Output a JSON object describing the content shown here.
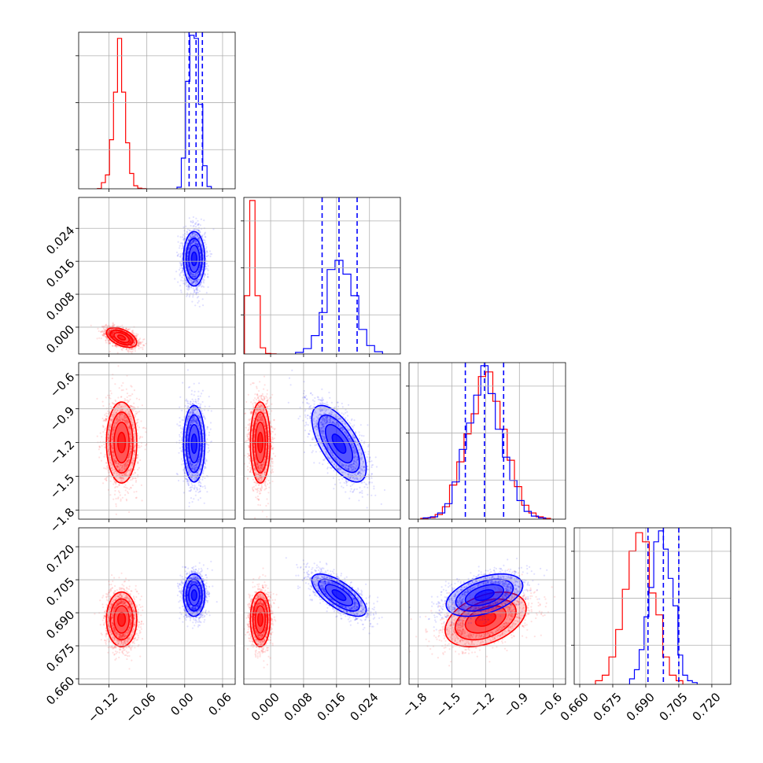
{
  "chart_data": {
    "type": "scatter",
    "kind": "corner-plot",
    "params": [
      {
        "ticks": [
          -0.12,
          -0.06,
          0.0,
          0.06
        ],
        "tick_labels": [
          "−0.12",
          "−0.06",
          "0.00",
          "0.06"
        ],
        "range": [
          -0.168,
          0.08
        ]
      },
      {
        "ticks": [
          0.0,
          0.008,
          0.016,
          0.024
        ],
        "tick_labels": [
          "0.000",
          "0.008",
          "0.016",
          "0.024"
        ],
        "range": [
          -0.0065,
          0.0315
        ]
      },
      {
        "ticks": [
          -1.8,
          -1.5,
          -1.2,
          -0.9,
          -0.6
        ],
        "tick_labels": [
          "−1.8",
          "−1.5",
          "−1.2",
          "−0.9",
          "−0.6"
        ],
        "range": [
          -1.88,
          -0.49
        ]
      },
      {
        "ticks": [
          0.66,
          0.675,
          0.69,
          0.705,
          0.72
        ],
        "tick_labels": [
          "0.660",
          "0.675",
          "0.690",
          "0.705",
          "0.720"
        ],
        "range": [
          0.6575,
          0.7286
        ]
      }
    ],
    "series": [
      {
        "color": "#ff0000",
        "mean": [
          -0.1,
          -0.0025,
          -1.2,
          0.687
        ],
        "sd": [
          0.012,
          0.0012,
          0.18,
          0.0062
        ],
        "corr": [
          [
            0,
            1,
            -0.5
          ],
          [
            2,
            3,
            0.4
          ]
        ],
        "hist": [
          [
            0.0015,
            0.04,
            0.09,
            0.32,
            0.63,
            0.98,
            0.63,
            0.3,
            0.1,
            0.02,
            0.004,
            0.0005
          ],
          [
            0.38,
            1.0,
            0.38,
            0.04,
            0.003,
            0.0005
          ],
          [
            0.005,
            0.01,
            0.03,
            0.08,
            0.22,
            0.37,
            0.55,
            0.68,
            0.92,
            0.95,
            0.76,
            0.58,
            0.38,
            0.21,
            0.09,
            0.04,
            0.015,
            0.005
          ],
          [
            0.02,
            0.05,
            0.15,
            0.3,
            0.52,
            0.73,
            0.83,
            0.78,
            0.5,
            0.38,
            0.15,
            0.05,
            0.02
          ]
        ]
      },
      {
        "color": "#0000ff",
        "mean": [
          0.015,
          0.0166,
          -1.21,
          0.698
        ],
        "sd": [
          0.0085,
          0.0033,
          0.17,
          0.0048
        ],
        "corr": [
          [
            1,
            2,
            -0.65
          ],
          [
            1,
            3,
            -0.7
          ],
          [
            2,
            3,
            0.45
          ]
        ],
        "quantiles": [
          [
            0.007,
            0.018,
            0.028
          ],
          [
            0.0125,
            0.0166,
            0.021
          ],
          [
            -1.38,
            -1.21,
            -1.04
          ],
          [
            0.691,
            0.698,
            0.705
          ]
        ],
        "hist": [
          [
            0.01,
            0.2,
            0.7,
            1.0,
            0.98,
            0.55,
            0.15,
            0.015
          ],
          [
            0.01,
            0.035,
            0.12,
            0.27,
            0.55,
            0.61,
            0.52,
            0.38,
            0.16,
            0.055,
            0.015
          ],
          [
            0.008,
            0.015,
            0.04,
            0.1,
            0.24,
            0.45,
            0.62,
            0.8,
            0.99,
            0.81,
            0.58,
            0.4,
            0.25,
            0.12,
            0.05,
            0.02,
            0.008
          ],
          [
            0.03,
            0.08,
            0.19,
            0.37,
            0.53,
            0.78,
            0.84,
            0.74,
            0.58,
            0.43,
            0.16,
            0.05,
            0.02,
            0.01
          ]
        ]
      }
    ],
    "contour_levels": [
      "0.5σ",
      "1σ",
      "1.5σ",
      "2σ"
    ],
    "xlabel": "",
    "ylabel": "",
    "grid": true
  }
}
